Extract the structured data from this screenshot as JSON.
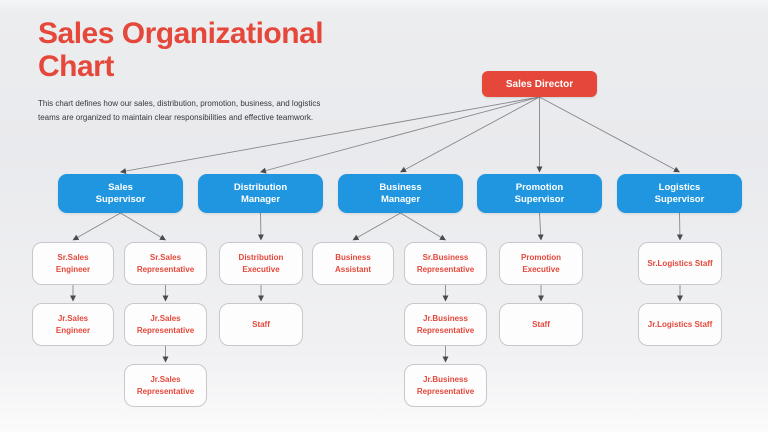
{
  "header": {
    "title": "Sales Organizational\nChart",
    "subtitle": "This chart defines how our sales, distribution, promotion, business, and logistics\nteams are organized to maintain clear responsibilities and effective teamwork."
  },
  "colors": {
    "accent_red": "#E5483A",
    "accent_blue": "#2196E0",
    "node_border": "#C7C8CC",
    "connector": "#85878A",
    "arrowhead": "#4A4B4D",
    "text_dark": "#35373B"
  },
  "org": {
    "nodes": [
      {
        "id": "sales-director",
        "label": "Sales Director",
        "level": "root"
      },
      {
        "id": "sales-supervisor",
        "label": "Sales\nSupervisor",
        "level": "manager"
      },
      {
        "id": "distribution-manager",
        "label": "Distribution\nManager",
        "level": "manager"
      },
      {
        "id": "business-manager",
        "label": "Business\nManager",
        "level": "manager"
      },
      {
        "id": "promotion-supervisor",
        "label": "Promotion\nSupervisor",
        "level": "manager"
      },
      {
        "id": "logistics-supervisor",
        "label": "Logistics\nSupervisor",
        "level": "manager"
      },
      {
        "id": "sr-sales-engineer",
        "label": "Sr.Sales\nEngineer",
        "level": "staff"
      },
      {
        "id": "sr-sales-representative",
        "label": "Sr.Sales\nRepresentative",
        "level": "staff"
      },
      {
        "id": "distribution-executive",
        "label": "Distribution\nExecutive",
        "level": "staff"
      },
      {
        "id": "business-assistant",
        "label": "Business\nAssistant",
        "level": "staff"
      },
      {
        "id": "sr-business-representative",
        "label": "Sr.Business\nRepresentative",
        "level": "staff"
      },
      {
        "id": "promotion-executive",
        "label": "Promotion\nExecutive",
        "level": "staff"
      },
      {
        "id": "sr-logistics-staff",
        "label": "Sr.Logistics Staff",
        "level": "staff"
      },
      {
        "id": "jr-sales-engineer",
        "label": "Jr.Sales\nEngineer",
        "level": "staff"
      },
      {
        "id": "jr-sales-representative",
        "label": "Jr.Sales\nRepresentative",
        "level": "staff"
      },
      {
        "id": "staff-distribution",
        "label": "Staff",
        "level": "staff"
      },
      {
        "id": "jr-business-representative",
        "label": "Jr.Business\nRepresentative",
        "level": "staff"
      },
      {
        "id": "staff-promotion",
        "label": "Staff",
        "level": "staff"
      },
      {
        "id": "jr-logistics-staff",
        "label": "Jr.Logistics Staff",
        "level": "staff"
      },
      {
        "id": "jr-sales-representative-2",
        "label": "Jr.Sales\nRepresentative",
        "level": "staff"
      },
      {
        "id": "jr-business-representative-2",
        "label": "Jr.Business\nRepresentative",
        "level": "staff"
      }
    ],
    "edges": [
      {
        "from": "sales-director",
        "to": "sales-supervisor"
      },
      {
        "from": "sales-director",
        "to": "distribution-manager"
      },
      {
        "from": "sales-director",
        "to": "business-manager"
      },
      {
        "from": "sales-director",
        "to": "promotion-supervisor"
      },
      {
        "from": "sales-director",
        "to": "logistics-supervisor"
      },
      {
        "from": "sales-supervisor",
        "to": "sr-sales-engineer"
      },
      {
        "from": "sales-supervisor",
        "to": "sr-sales-representative"
      },
      {
        "from": "distribution-manager",
        "to": "distribution-executive"
      },
      {
        "from": "business-manager",
        "to": "business-assistant"
      },
      {
        "from": "business-manager",
        "to": "sr-business-representative"
      },
      {
        "from": "promotion-supervisor",
        "to": "promotion-executive"
      },
      {
        "from": "logistics-supervisor",
        "to": "sr-logistics-staff"
      },
      {
        "from": "sr-sales-engineer",
        "to": "jr-sales-engineer"
      },
      {
        "from": "sr-sales-representative",
        "to": "jr-sales-representative"
      },
      {
        "from": "jr-sales-representative",
        "to": "jr-sales-representative-2"
      },
      {
        "from": "distribution-executive",
        "to": "staff-distribution"
      },
      {
        "from": "sr-business-representative",
        "to": "jr-business-representative"
      },
      {
        "from": "jr-business-representative",
        "to": "jr-business-representative-2"
      },
      {
        "from": "promotion-executive",
        "to": "staff-promotion"
      },
      {
        "from": "sr-logistics-staff",
        "to": "jr-logistics-staff"
      }
    ]
  }
}
